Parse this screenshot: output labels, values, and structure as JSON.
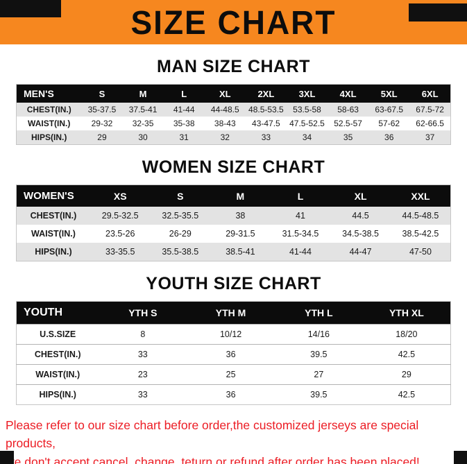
{
  "banner": {
    "title": "SIZE CHART"
  },
  "colors": {
    "banner_orange": "#F6871F",
    "table_header_black": "#0C0C0C",
    "footer_red": "#EC1C24",
    "row_stripe_gray": "#E3E3E3"
  },
  "chart_data": [
    {
      "type": "table",
      "title": "MAN SIZE CHART",
      "columns": [
        "MEN'S",
        "S",
        "M",
        "L",
        "XL",
        "2XL",
        "3XL",
        "4XL",
        "5XL",
        "6XL"
      ],
      "rows": [
        {
          "label": "CHEST(IN.)",
          "values": [
            "35-37.5",
            "37.5-41",
            "41-44",
            "44-48.5",
            "48.5-53.5",
            "53.5-58",
            "58-63",
            "63-67.5",
            "67.5-72"
          ]
        },
        {
          "label": "WAIST(IN.)",
          "values": [
            "29-32",
            "32-35",
            "35-38",
            "38-43",
            "43-47.5",
            "47.5-52.5",
            "52.5-57",
            "57-62",
            "62-66.5"
          ]
        },
        {
          "label": "HIPS(IN.)",
          "values": [
            "29",
            "30",
            "31",
            "32",
            "33",
            "34",
            "35",
            "36",
            "37"
          ]
        }
      ]
    },
    {
      "type": "table",
      "title": "WOMEN SIZE CHART",
      "columns": [
        "WOMEN'S",
        "XS",
        "S",
        "M",
        "L",
        "XL",
        "XXL"
      ],
      "rows": [
        {
          "label": "CHEST(IN.)",
          "values": [
            "29.5-32.5",
            "32.5-35.5",
            "38",
            "41",
            "44.5",
            "44.5-48.5"
          ]
        },
        {
          "label": "WAIST(IN.)",
          "values": [
            "23.5-26",
            "26-29",
            "29-31.5",
            "31.5-34.5",
            "34.5-38.5",
            "38.5-42.5"
          ]
        },
        {
          "label": "HIPS(IN.)",
          "values": [
            "33-35.5",
            "35.5-38.5",
            "38.5-41",
            "41-44",
            "44-47",
            "47-50"
          ]
        }
      ]
    },
    {
      "type": "table",
      "title": "YOUTH SIZE CHART",
      "columns": [
        "YOUTH",
        "YTH S",
        "YTH M",
        "YTH L",
        "YTH XL"
      ],
      "rows": [
        {
          "label": "U.S.SIZE",
          "values": [
            "8",
            "10/12",
            "14/16",
            "18/20"
          ]
        },
        {
          "label": "CHEST(IN.)",
          "values": [
            "33",
            "36",
            "39.5",
            "42.5"
          ]
        },
        {
          "label": "WAIST(IN.)",
          "values": [
            "23",
            "25",
            "27",
            "29"
          ]
        },
        {
          "label": "HIPS(IN.)",
          "values": [
            "33",
            "36",
            "39.5",
            "42.5"
          ]
        }
      ]
    }
  ],
  "footer": {
    "line1": "Please refer to our size chart before order,the customized jerseys are special products,",
    "line2": "we don't accept cancel, change, teturn or refund after order has been placed!"
  }
}
